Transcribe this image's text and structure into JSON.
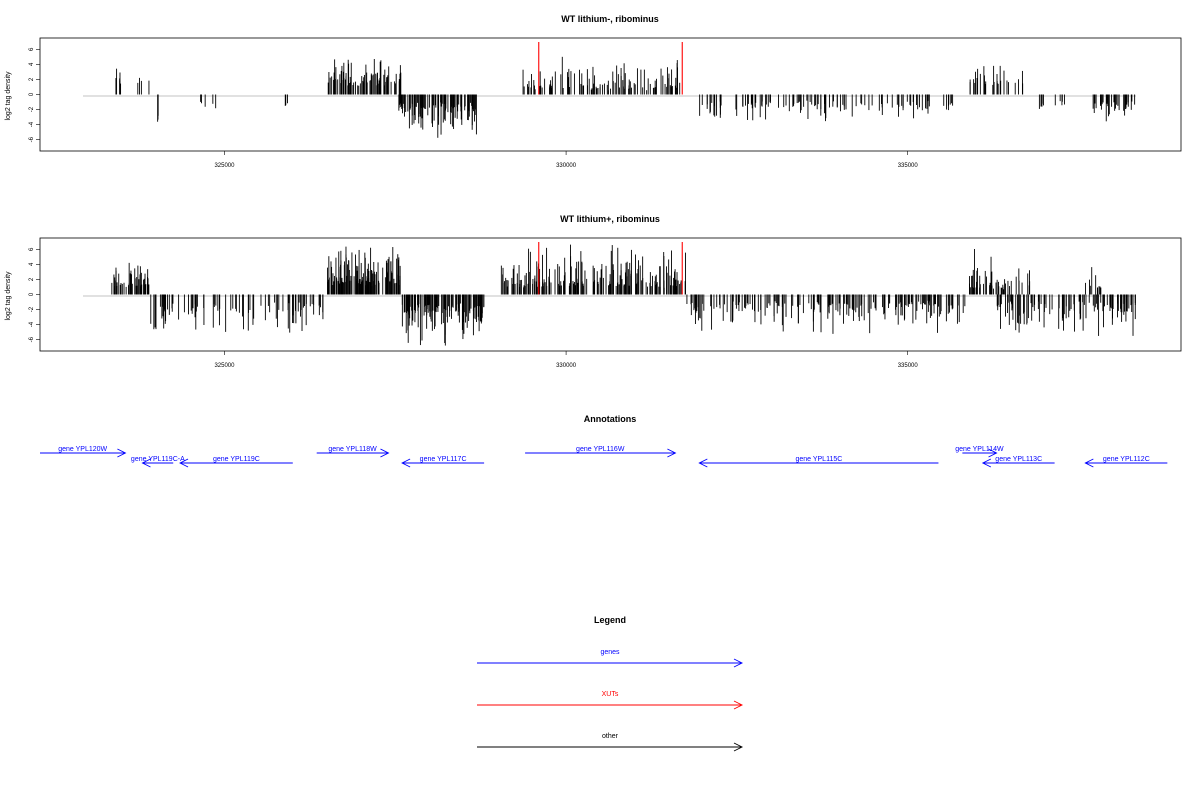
{
  "colors": {
    "gene": "#0000ff",
    "xut": "#ff0000",
    "other": "#000000",
    "axis": "#000000"
  },
  "chart_data": [
    {
      "type": "bar",
      "title": "WT lithium-, ribominus",
      "ylabel": "log2 tag density",
      "xlim": [
        322300,
        339000
      ],
      "ylim": [
        -7.5,
        7.5
      ],
      "x_ticks": [
        "325000",
        "330000",
        "335000"
      ],
      "y_ticks": [
        "6",
        "4",
        "2",
        "0",
        "-2",
        "-4",
        "-6"
      ],
      "grid": false,
      "segments": [
        {
          "from": 323400,
          "to": 323500,
          "sign": 1,
          "lo": 1.0,
          "hi": 3.8,
          "density": 6
        },
        {
          "from": 323700,
          "to": 323900,
          "sign": 1,
          "lo": 1.0,
          "hi": 3.0,
          "density": 4
        },
        {
          "from": 324000,
          "to": 324050,
          "sign": -1,
          "lo": 2.5,
          "hi": 3.8,
          "density": 3
        },
        {
          "from": 324550,
          "to": 324950,
          "sign": -1,
          "lo": 0.8,
          "hi": 2.8,
          "density": 5
        },
        {
          "from": 325800,
          "to": 326000,
          "sign": -1,
          "lo": 0.8,
          "hi": 2.4,
          "density": 3
        },
        {
          "from": 326500,
          "to": 327600,
          "sign": 1,
          "lo": 1.0,
          "hi": 5.2,
          "density": 90
        },
        {
          "from": 327550,
          "to": 328700,
          "sign": -1,
          "lo": 1.0,
          "hi": 5.8,
          "density": 110
        },
        {
          "from": 329350,
          "to": 331700,
          "sign": 1,
          "lo": 0.5,
          "hi": 5.0,
          "density": 110
        },
        {
          "from": 331850,
          "to": 334200,
          "sign": -1,
          "lo": 0.8,
          "hi": 3.8,
          "density": 80
        },
        {
          "from": 334200,
          "to": 335700,
          "sign": -1,
          "lo": 0.8,
          "hi": 3.5,
          "density": 40
        },
        {
          "from": 335900,
          "to": 336700,
          "sign": 1,
          "lo": 1.0,
          "hi": 3.8,
          "density": 30
        },
        {
          "from": 336900,
          "to": 337300,
          "sign": -1,
          "lo": 0.8,
          "hi": 2.6,
          "density": 10
        },
        {
          "from": 337650,
          "to": 338350,
          "sign": -1,
          "lo": 0.8,
          "hi": 3.8,
          "density": 35
        }
      ],
      "markers": [
        329600,
        331700
      ]
    },
    {
      "type": "bar",
      "title": "WT lithium+, ribominus",
      "ylabel": "log2 tag density",
      "xlim": [
        322300,
        339000
      ],
      "ylim": [
        -7.5,
        7.5
      ],
      "x_ticks": [
        "325000",
        "330000",
        "335000"
      ],
      "y_ticks": [
        "6",
        "4",
        "2",
        "0",
        "-2",
        "-4",
        "-6"
      ],
      "grid": false,
      "segments": [
        {
          "from": 323350,
          "to": 323900,
          "sign": 1,
          "lo": 0.8,
          "hi": 4.2,
          "density": 50
        },
        {
          "from": 323900,
          "to": 326500,
          "sign": -1,
          "lo": 0.8,
          "hi": 5.5,
          "density": 90
        },
        {
          "from": 326500,
          "to": 327600,
          "sign": 1,
          "lo": 1.0,
          "hi": 7.0,
          "density": 140
        },
        {
          "from": 327600,
          "to": 328800,
          "sign": -1,
          "lo": 1.0,
          "hi": 7.0,
          "density": 140
        },
        {
          "from": 329050,
          "to": 331750,
          "sign": 1,
          "lo": 0.8,
          "hi": 7.0,
          "density": 200
        },
        {
          "from": 331750,
          "to": 335900,
          "sign": -1,
          "lo": 0.8,
          "hi": 5.5,
          "density": 200
        },
        {
          "from": 335900,
          "to": 336800,
          "sign": 1,
          "lo": 0.5,
          "hi": 6.5,
          "density": 50
        },
        {
          "from": 336300,
          "to": 338350,
          "sign": -1,
          "lo": 0.8,
          "hi": 5.5,
          "density": 120
        },
        {
          "from": 337600,
          "to": 337900,
          "sign": 1,
          "lo": 0.5,
          "hi": 4.0,
          "density": 10
        }
      ],
      "markers": [
        329600,
        331700
      ]
    }
  ],
  "annotations": {
    "title": "Annotations",
    "genes": [
      {
        "label": "gene YPL120W",
        "x0": 322300,
        "x1": 323550,
        "dir": "right",
        "row": 0
      },
      {
        "label": "gene YPL119C-A",
        "x0": 323800,
        "x1": 324250,
        "dir": "left",
        "row": 1
      },
      {
        "label": "gene YPL119C",
        "x0": 324350,
        "x1": 326000,
        "dir": "left",
        "row": 1
      },
      {
        "label": "gene YPL118W",
        "x0": 326350,
        "x1": 327400,
        "dir": "right",
        "row": 0
      },
      {
        "label": "gene YPL117C",
        "x0": 327600,
        "x1": 328800,
        "dir": "left",
        "row": 1
      },
      {
        "label": "gene YPL116W",
        "x0": 329400,
        "x1": 331600,
        "dir": "right",
        "row": 0
      },
      {
        "label": "gene YPL115C",
        "x0": 331950,
        "x1": 335450,
        "dir": "left",
        "row": 1
      },
      {
        "label": "gene YPL114W",
        "x0": 335800,
        "x1": 336300,
        "dir": "right",
        "row": 0
      },
      {
        "label": "gene YPL113C",
        "x0": 336100,
        "x1": 337150,
        "dir": "left",
        "row": 1
      },
      {
        "label": "gene YPL112C",
        "x0": 337600,
        "x1": 338800,
        "dir": "left",
        "row": 1
      }
    ]
  },
  "legend": {
    "title": "Legend",
    "items": [
      {
        "label": "genes",
        "color": "#0000ff"
      },
      {
        "label": "XUTs",
        "color": "#ff0000"
      },
      {
        "label": "other",
        "color": "#000000"
      }
    ]
  }
}
